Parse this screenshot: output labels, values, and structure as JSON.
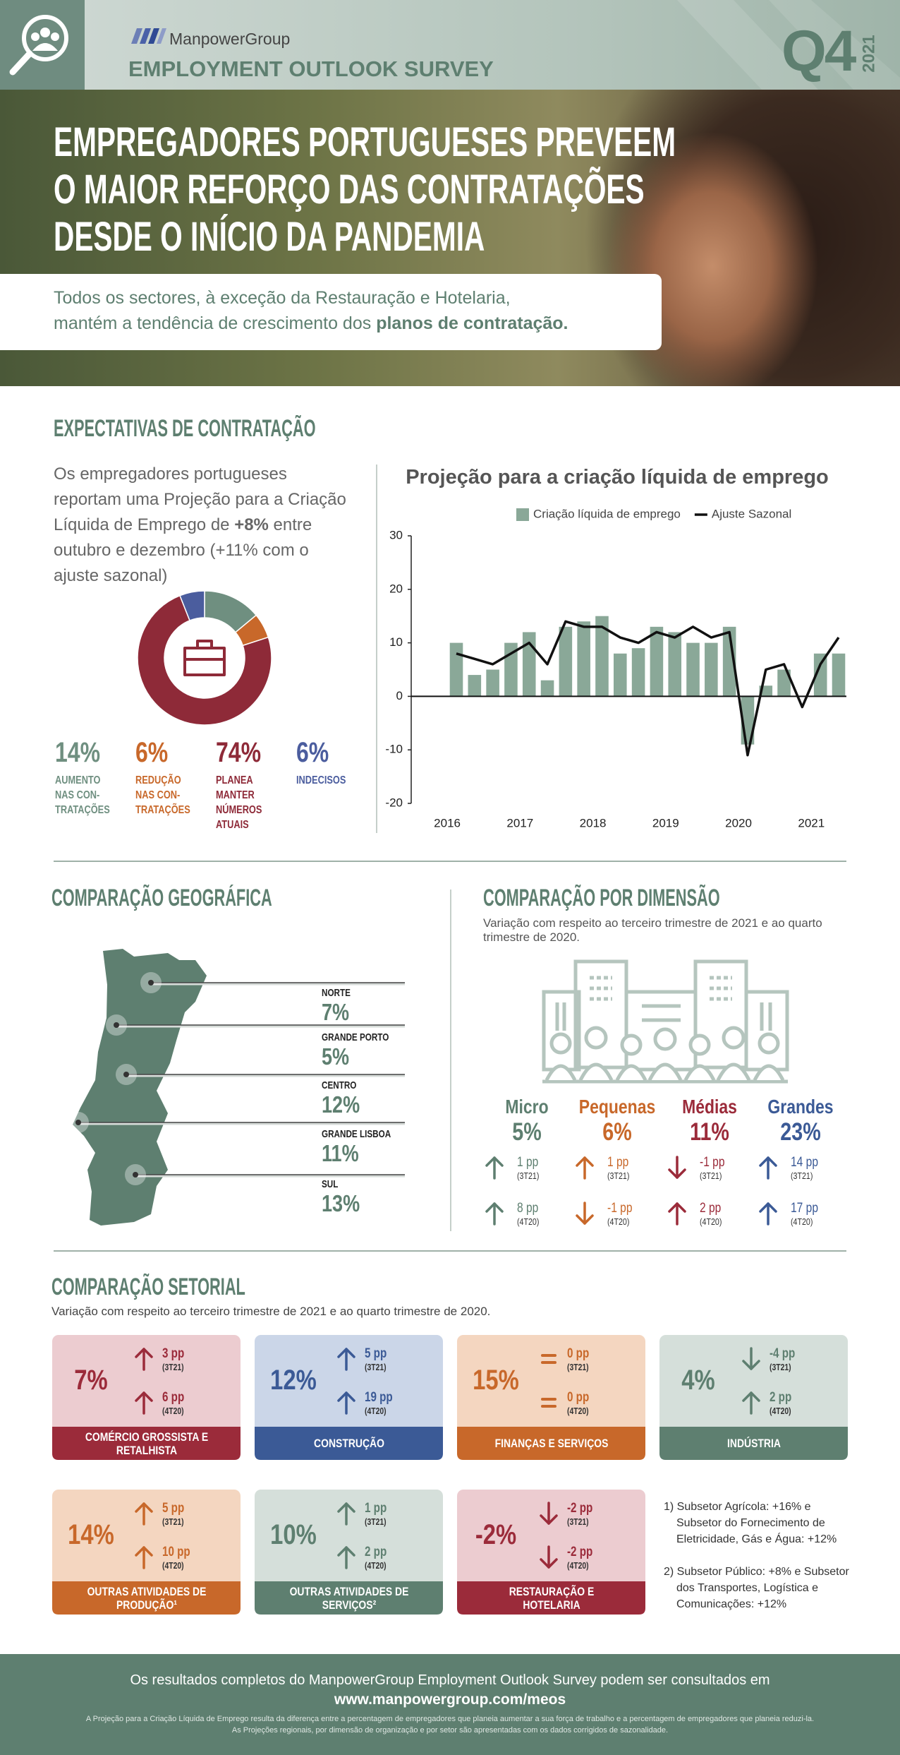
{
  "header": {
    "brand": "ManpowerGroup",
    "survey": "EMPLOYMENT OUTLOOK SURVEY",
    "quarter": "Q4",
    "year": "2021"
  },
  "hero": {
    "headline": [
      "EMPREGADORES PORTUGUESES PREVEEM",
      "O MAIOR REFORÇO DAS CONTRATAÇÕES",
      "DESDE O INÍCIO DA PANDEMIA"
    ],
    "subtitle_line1": "Todos os sectores, à exceção da Restauração e Hotelaria,",
    "subtitle_line2": "mantém a tendência de crescimento dos ",
    "subtitle_bold": "planos de contratação."
  },
  "expectations": {
    "title": "EXPECTATIVAS DE CONTRATAÇÃO",
    "text_start": "Os empregadores portugueses reportam uma Projeção para a Criação Líquida de Emprego de ",
    "text_bold": "+8%",
    "text_end": " entre outubro e dezembro (+11% com o ajuste sazonal)"
  },
  "chart_data": [
    {
      "type": "donut",
      "categories": [
        "AUMENTO NAS CON-TRATAÇÕES",
        "REDUÇÃO NAS CON-TRATAÇÕES",
        "PLANEA MANTER NÚMEROS ATUAIS",
        "INDECISOS"
      ],
      "values": [
        14,
        6,
        74,
        6
      ],
      "value_labels": [
        "14%",
        "6%",
        "74%",
        "6%"
      ],
      "colors": [
        "#6f8f80",
        "#c8682a",
        "#8e2a38",
        "#4b5d9e"
      ]
    },
    {
      "type": "bar",
      "title": "Projeção para a criação líquida de emprego",
      "categories": [
        "2016",
        null,
        null,
        null,
        "2017",
        null,
        null,
        null,
        "2018",
        null,
        null,
        null,
        "2019",
        null,
        null,
        null,
        "2020",
        null,
        null,
        null,
        "2021",
        null
      ],
      "series": [
        {
          "name": "Criação líquida de emprego",
          "type": "bar",
          "color": "#8aa898",
          "values": [
            10,
            4,
            5,
            10,
            12,
            3,
            13,
            14,
            15,
            8,
            9,
            13,
            12,
            10,
            10,
            13,
            -9,
            2,
            5,
            0,
            8,
            8
          ]
        },
        {
          "name": "Ajuste Sazonal",
          "type": "line",
          "color": "#111111",
          "values": [
            8,
            7,
            6,
            8,
            10,
            6,
            14,
            13,
            13,
            11,
            10,
            12,
            11,
            13,
            11,
            12,
            -11,
            5,
            6,
            -2,
            6,
            11
          ]
        }
      ],
      "ylim": [
        -20,
        30
      ],
      "yticks": [
        -20,
        -10,
        0,
        10,
        20,
        30
      ],
      "grid": false,
      "legend": "top"
    }
  ],
  "geography": {
    "title": "COMPARAÇÃO GEOGRÁFICA",
    "regions": [
      {
        "name": "NORTE",
        "value": "7%"
      },
      {
        "name": "GRANDE PORTO",
        "value": "5%"
      },
      {
        "name": "CENTRO",
        "value": "12%"
      },
      {
        "name": "GRANDE LISBOA",
        "value": "11%"
      },
      {
        "name": "SUL",
        "value": "13%"
      }
    ]
  },
  "size": {
    "title": "COMPARAÇÃO POR DIMENSÃO",
    "subtitle": "Variação com respeito ao terceiro trimestre de 2021 e ao quarto trimestre de 2020.",
    "columns": [
      {
        "name": "Micro",
        "value": "5%",
        "color": "#5e7f70",
        "rows": [
          {
            "arrow": "up",
            "change": "1 pp",
            "period": "(3T21)"
          },
          {
            "arrow": "up",
            "change": "8 pp",
            "period": "(4T20)"
          }
        ]
      },
      {
        "name": "Pequenas",
        "value": "6%",
        "color": "#c8682a",
        "rows": [
          {
            "arrow": "up",
            "change": "1 pp",
            "period": "(3T21)"
          },
          {
            "arrow": "down",
            "change": "-1 pp",
            "period": "(4T20)"
          }
        ]
      },
      {
        "name": "Médias",
        "value": "11%",
        "color": "#9b2b3a",
        "rows": [
          {
            "arrow": "down",
            "change": "-1 pp",
            "period": "(3T21)"
          },
          {
            "arrow": "up",
            "change": "2 pp",
            "period": "(4T20)"
          }
        ]
      },
      {
        "name": "Grandes",
        "value": "23%",
        "color": "#3b5a96",
        "rows": [
          {
            "arrow": "up",
            "change": "14 pp",
            "period": "(3T21)"
          },
          {
            "arrow": "up",
            "change": "17 pp",
            "period": "(4T20)"
          }
        ]
      }
    ]
  },
  "sectors": {
    "title": "COMPARAÇÃO SETORIAL",
    "subtitle": "Variação com respeito ao terceiro trimestre de 2021 e ao quarto trimestre de 2020.",
    "cards": [
      {
        "name": "COMÉRCIO GROSSISTA E RETALHISTA",
        "value": "7%",
        "color": "#9b2b3a",
        "bg": "#ecccd0",
        "rows": [
          {
            "arrow": "up",
            "change": "3 pp",
            "period": "(3T21)"
          },
          {
            "arrow": "up",
            "change": "6 pp",
            "period": "(4T20)"
          }
        ]
      },
      {
        "name": "CONSTRUÇÃO",
        "value": "12%",
        "color": "#3b5a96",
        "bg": "#cbd6e8",
        "rows": [
          {
            "arrow": "up",
            "change": "5 pp",
            "period": "(3T21)"
          },
          {
            "arrow": "up",
            "change": "19 pp",
            "period": "(4T20)"
          }
        ]
      },
      {
        "name": "FINANÇAS E SERVIÇOS",
        "value": "15%",
        "color": "#c8682a",
        "bg": "#f4d6c0",
        "rows": [
          {
            "arrow": "equal",
            "change": "0 pp",
            "period": "(3T21)"
          },
          {
            "arrow": "equal",
            "change": "0 pp",
            "period": "(4T20)"
          }
        ]
      },
      {
        "name": "INDÚSTRIA",
        "value": "4%",
        "color": "#5e7f70",
        "bg": "#d5dfda",
        "rows": [
          {
            "arrow": "down",
            "change": "-4 pp",
            "period": "(3T21)"
          },
          {
            "arrow": "up",
            "change": "2 pp",
            "period": "(4T20)"
          }
        ]
      },
      {
        "name": "OUTRAS ATIVIDADES DE PRODUÇÃO¹",
        "value": "14%",
        "color": "#c8682a",
        "bg": "#f4d6c0",
        "rows": [
          {
            "arrow": "up",
            "change": "5 pp",
            "period": "(3T21)"
          },
          {
            "arrow": "up",
            "change": "10 pp",
            "period": "(4T20)"
          }
        ]
      },
      {
        "name": "OUTRAS ATIVIDADES DE SERVIÇOS²",
        "value": "10%",
        "color": "#5e7f70",
        "bg": "#d5dfda",
        "rows": [
          {
            "arrow": "up",
            "change": "1 pp",
            "period": "(3T21)"
          },
          {
            "arrow": "up",
            "change": "2 pp",
            "period": "(4T20)"
          }
        ]
      },
      {
        "name": "RESTAURAÇÃO E HOTELARIA",
        "value": "-2%",
        "color": "#9b2b3a",
        "bg": "#ecccd0",
        "rows": [
          {
            "arrow": "down",
            "change": "-2 pp",
            "period": "(3T21)"
          },
          {
            "arrow": "down",
            "change": "-2 pp",
            "period": "(4T20)"
          }
        ]
      }
    ],
    "notes": [
      "1) Subsetor Agrícola: +16% e Subsetor do Fornecimento de Eletricidade, Gás e Água: +12%",
      "2) Subsetor Público: +8% e Subsetor dos Transportes, Logística e Comunicações: +12%"
    ]
  },
  "footer": {
    "line1": "Os resultados completos do ManpowerGroup Employment Outlook Survey podem ser consultados em",
    "url": "www.manpowergroup.com/meos",
    "disclaimer": [
      "A Projeção para a Criação Líquida de Emprego resulta da diferença entre a percentagem de empregadores que planeia aumentar a sua força de trabalho e a percentagem de empregadores que planeia reduzi-la.",
      "As Projeções regionais, por dimensão de organização e por setor são apresentadas com os dados corrigidos de sazonalidade."
    ]
  }
}
